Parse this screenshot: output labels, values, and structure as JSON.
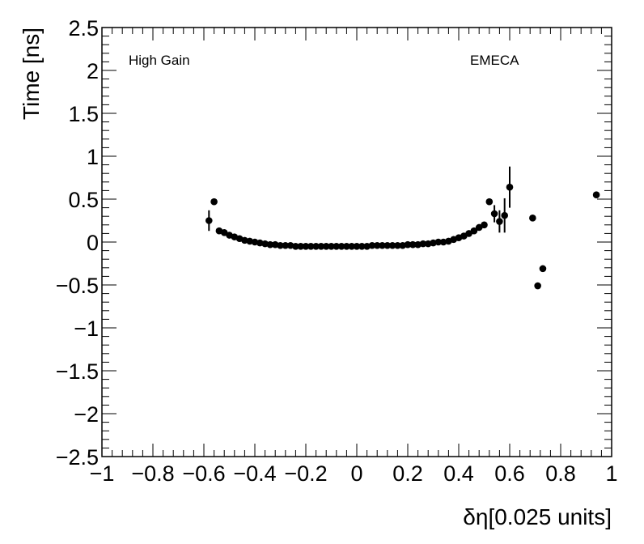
{
  "chart_data": {
    "type": "scatter",
    "xlabel": "δη[0.025 units]",
    "ylabel": "Time [ns]",
    "xlim": [
      -1,
      1
    ],
    "ylim": [
      -2.5,
      2.5
    ],
    "x_ticks": [
      -1,
      -0.8,
      -0.6,
      -0.4,
      -0.2,
      0,
      0.2,
      0.4,
      0.6,
      0.8,
      1
    ],
    "x_tick_labels": [
      "−1",
      "−0.8",
      "−0.6",
      "−0.4",
      "−0.2",
      "0",
      "0.2",
      "0.4",
      "0.6",
      "0.8",
      "1"
    ],
    "y_ticks": [
      -2.5,
      -2,
      -1.5,
      -1,
      -0.5,
      0,
      0.5,
      1,
      1.5,
      2,
      2.5
    ],
    "y_tick_labels": [
      "−2.5",
      "−2",
      "−1.5",
      "−1",
      "−0.5",
      "0",
      "0.5",
      "1",
      "1.5",
      "2",
      "2.5"
    ],
    "annotations": [
      "High Gain",
      "EMECA"
    ],
    "grid": false,
    "marker_color": "#000000",
    "points": [
      {
        "x": -0.58,
        "y": 0.25,
        "err": 0.12
      },
      {
        "x": -0.56,
        "y": 0.47,
        "err": 0.03
      },
      {
        "x": -0.54,
        "y": 0.13,
        "err": 0.01
      },
      {
        "x": -0.52,
        "y": 0.11,
        "err": 0.01
      },
      {
        "x": -0.5,
        "y": 0.08,
        "err": 0.01
      },
      {
        "x": -0.48,
        "y": 0.06,
        "err": 0.01
      },
      {
        "x": -0.46,
        "y": 0.04,
        "err": 0.01
      },
      {
        "x": -0.44,
        "y": 0.02,
        "err": 0.01
      },
      {
        "x": -0.42,
        "y": 0.01,
        "err": 0.01
      },
      {
        "x": -0.4,
        "y": 0.0,
        "err": 0.01
      },
      {
        "x": -0.38,
        "y": -0.01,
        "err": 0.01
      },
      {
        "x": -0.36,
        "y": -0.02,
        "err": 0.01
      },
      {
        "x": -0.34,
        "y": -0.03,
        "err": 0.01
      },
      {
        "x": -0.32,
        "y": -0.03,
        "err": 0.01
      },
      {
        "x": -0.3,
        "y": -0.04,
        "err": 0.01
      },
      {
        "x": -0.28,
        "y": -0.04,
        "err": 0.01
      },
      {
        "x": -0.26,
        "y": -0.04,
        "err": 0.01
      },
      {
        "x": -0.24,
        "y": -0.05,
        "err": 0.01
      },
      {
        "x": -0.22,
        "y": -0.05,
        "err": 0.01
      },
      {
        "x": -0.2,
        "y": -0.05,
        "err": 0.01
      },
      {
        "x": -0.18,
        "y": -0.05,
        "err": 0.01
      },
      {
        "x": -0.16,
        "y": -0.05,
        "err": 0.01
      },
      {
        "x": -0.14,
        "y": -0.05,
        "err": 0.01
      },
      {
        "x": -0.12,
        "y": -0.05,
        "err": 0.01
      },
      {
        "x": -0.1,
        "y": -0.05,
        "err": 0.01
      },
      {
        "x": -0.08,
        "y": -0.05,
        "err": 0.01
      },
      {
        "x": -0.06,
        "y": -0.05,
        "err": 0.01
      },
      {
        "x": -0.04,
        "y": -0.05,
        "err": 0.01
      },
      {
        "x": -0.02,
        "y": -0.05,
        "err": 0.01
      },
      {
        "x": 0.0,
        "y": -0.05,
        "err": 0.01
      },
      {
        "x": 0.02,
        "y": -0.05,
        "err": 0.01
      },
      {
        "x": 0.04,
        "y": -0.05,
        "err": 0.01
      },
      {
        "x": 0.06,
        "y": -0.04,
        "err": 0.01
      },
      {
        "x": 0.08,
        "y": -0.04,
        "err": 0.01
      },
      {
        "x": 0.1,
        "y": -0.04,
        "err": 0.01
      },
      {
        "x": 0.12,
        "y": -0.04,
        "err": 0.01
      },
      {
        "x": 0.14,
        "y": -0.04,
        "err": 0.01
      },
      {
        "x": 0.16,
        "y": -0.04,
        "err": 0.01
      },
      {
        "x": 0.18,
        "y": -0.04,
        "err": 0.01
      },
      {
        "x": 0.2,
        "y": -0.03,
        "err": 0.01
      },
      {
        "x": 0.22,
        "y": -0.03,
        "err": 0.01
      },
      {
        "x": 0.24,
        "y": -0.03,
        "err": 0.01
      },
      {
        "x": 0.26,
        "y": -0.02,
        "err": 0.01
      },
      {
        "x": 0.28,
        "y": -0.02,
        "err": 0.01
      },
      {
        "x": 0.3,
        "y": -0.01,
        "err": 0.01
      },
      {
        "x": 0.32,
        "y": 0.0,
        "err": 0.01
      },
      {
        "x": 0.34,
        "y": 0.0,
        "err": 0.01
      },
      {
        "x": 0.36,
        "y": 0.01,
        "err": 0.01
      },
      {
        "x": 0.38,
        "y": 0.03,
        "err": 0.01
      },
      {
        "x": 0.4,
        "y": 0.05,
        "err": 0.01
      },
      {
        "x": 0.42,
        "y": 0.07,
        "err": 0.01
      },
      {
        "x": 0.44,
        "y": 0.1,
        "err": 0.01
      },
      {
        "x": 0.46,
        "y": 0.13,
        "err": 0.01
      },
      {
        "x": 0.48,
        "y": 0.17,
        "err": 0.01
      },
      {
        "x": 0.5,
        "y": 0.2,
        "err": 0.02
      },
      {
        "x": 0.52,
        "y": 0.47,
        "err": 0.03
      },
      {
        "x": 0.54,
        "y": 0.33,
        "err": 0.1
      },
      {
        "x": 0.56,
        "y": 0.24,
        "err": 0.13
      },
      {
        "x": 0.58,
        "y": 0.31,
        "err": 0.2
      },
      {
        "x": 0.6,
        "y": 0.64,
        "err": 0.24
      },
      {
        "x": 0.69,
        "y": 0.28,
        "err": 0.02
      },
      {
        "x": 0.71,
        "y": -0.51,
        "err": 0.02
      },
      {
        "x": 0.73,
        "y": -0.31,
        "err": 0.02
      },
      {
        "x": 0.94,
        "y": 0.55,
        "err": 0.02
      }
    ]
  }
}
